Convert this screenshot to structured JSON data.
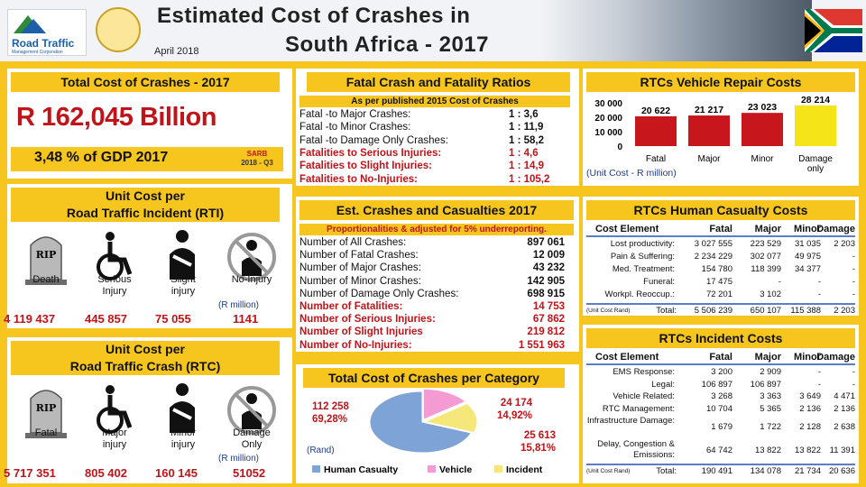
{
  "header": {
    "logo_text": "Road Traffic",
    "logo_sub": "Management Corporation",
    "title_line1": "Estimated Cost of Crashes in",
    "title_line2": "South Africa - 2017",
    "date": "April 2018"
  },
  "total_cost": {
    "heading": "Total Cost of Crashes - 2017",
    "amount": "R 162,045 Billion",
    "gdp": "3,48 % of GDP 2017",
    "source1": "SARB",
    "source2": "2018 - Q3"
  },
  "fatal_ratios": {
    "heading": "Fatal Crash and Fatality Ratios",
    "subheading": "As per published 2015 Cost of Crashes",
    "rows": [
      {
        "label": "Fatal  -to Major Crashes:",
        "value": "1 : 3,6",
        "red": false
      },
      {
        "label": "Fatal  -to Minor Crashes:",
        "value": "1 : 11,9",
        "red": false
      },
      {
        "label": "Fatal  -to Damage Only Crashes:",
        "value": "1 : 58,2",
        "red": false
      },
      {
        "label": "Fatalities to Serious Injuries:",
        "value": "1 : 4,6",
        "red": true
      },
      {
        "label": "Fatalities to Slight Injuries:",
        "value": "1 : 14,9",
        "red": true
      },
      {
        "label": "Fatalities to No-Injuries:",
        "value": "1 : 105,2",
        "red": true
      }
    ]
  },
  "vehicle_repair": {
    "heading": "RTCs Vehicle Repair Costs",
    "unit_note": "(Unit Cost -  R million)",
    "chart_data": {
      "type": "bar",
      "categories": [
        "Fatal",
        "Major",
        "Minor",
        "Damage only"
      ],
      "values": [
        20622,
        21217,
        23023,
        28214
      ],
      "value_labels": [
        "20 622",
        "21 217",
        "23 023",
        "28 214"
      ],
      "colors": [
        "#c8161d",
        "#c8161d",
        "#c8161d",
        "#f4e418"
      ],
      "ylim": [
        0,
        30000
      ],
      "yticks": [
        0,
        10000,
        20000,
        30000
      ],
      "ytick_labels": [
        "0",
        "10 000",
        "20 000",
        "30 000"
      ]
    }
  },
  "unit_cost_rti": {
    "heading_line1": "Unit Cost per",
    "heading_line2": "Road Traffic Incident (RTI)",
    "icons": [
      "tombstone-icon",
      "wheelchair-icon",
      "injured-person-icon",
      "no-injury-icon"
    ],
    "rip": "RIP",
    "labels": [
      "Death",
      "Serious Injury",
      "Slight injury",
      "No-Injury"
    ],
    "unit": "(R million)",
    "values": [
      "4 119 437",
      "445 857",
      "75 055",
      "1141"
    ]
  },
  "unit_cost_rtc": {
    "heading_line1": "Unit Cost per",
    "heading_line2": "Road Traffic Crash (RTC)",
    "rip": "RIP",
    "labels": [
      "Fatal",
      "Major injury",
      "Minor injury",
      "Damage Only"
    ],
    "unit": "(R million)",
    "values": [
      "5 717 351",
      "805 402",
      "160 145",
      "51052"
    ]
  },
  "est_crashes": {
    "heading": "Est. Crashes and Casualties 2017",
    "subheading": "Proportionalities & adjusted for 5% underreporting.",
    "rows": [
      {
        "label": "Number of All Crashes:",
        "value": "897 061",
        "red": false
      },
      {
        "label": "Number of Fatal Crashes:",
        "value": "12 009",
        "red": false
      },
      {
        "label": "Number of Major Crashes:",
        "value": "43 232",
        "red": false
      },
      {
        "label": "Number of Minor Crashes:",
        "value": "142 905",
        "red": false
      },
      {
        "label": "Number of Damage Only Crashes:",
        "value": "698 915",
        "red": false
      },
      {
        "label": "Number of Fatalities:",
        "value": "14 753",
        "red": true
      },
      {
        "label": "Number of Serious Injuries:",
        "value": "67 862",
        "red": true
      },
      {
        "label": "Number of Slight Injuries",
        "value": "219 812",
        "red": true
      },
      {
        "label": "Number of No-Injuries:",
        "value": "1 551 963",
        "red": true
      }
    ]
  },
  "cost_per_category": {
    "heading": "Total Cost of Crashes per Category",
    "unit": "(Rand)",
    "chart_data": {
      "type": "pie",
      "categories": [
        "Human Casualty",
        "Vehicle",
        "Incident"
      ],
      "values": [
        69.28,
        14.92,
        15.81
      ],
      "amount_labels": [
        "112 258",
        "24 174",
        "25 613"
      ],
      "pct_labels": [
        "69,28%",
        "14,92%",
        "15,81%"
      ],
      "colors": [
        "#7ea3d6",
        "#f49bd4",
        "#f5e77a"
      ]
    }
  },
  "human_casualty": {
    "heading": "RTCs Human Casualty Costs",
    "columns": [
      "Cost Element",
      "Fatal",
      "Major",
      "Minor",
      "Damage"
    ],
    "rows": [
      [
        "Lost productivity:",
        "3 027 555",
        "223 529",
        "31 035",
        "2 203"
      ],
      [
        "Pain & Suffering:",
        "2 234 229",
        "302 077",
        "49 975",
        "-"
      ],
      [
        "Med. Treatment:",
        "154 780",
        "118 399",
        "34 377",
        "-"
      ],
      [
        "Funeral:",
        "17 475",
        "-",
        "-",
        "-"
      ],
      [
        "Workpl. Reoccup.:",
        "72 201",
        "3 102",
        "-",
        "-"
      ]
    ],
    "total_note": "(Unit Cost Rand)",
    "total_label": "Total:",
    "total": [
      "5 506 239",
      "650 107",
      "115 388",
      "2 203"
    ]
  },
  "incident_costs": {
    "heading": "RTCs Incident Costs",
    "columns": [
      "Cost Element",
      "Fatal",
      "Major",
      "Minor",
      "Damage"
    ],
    "rows": [
      [
        "EMS Response:",
        "3 200",
        "2 909",
        "-",
        "-"
      ],
      [
        "Legal:",
        "106 897",
        "106 897",
        "-",
        "-"
      ],
      [
        "Vehicle Related:",
        "3 268",
        "3 363",
        "3 649",
        "4 471"
      ],
      [
        "RTC Management:",
        "10 704",
        "5 365",
        "2 136",
        "2 136"
      ],
      [
        "Infrastructure Damage:",
        "1 679",
        "1 722",
        "2 128",
        "2 638"
      ],
      [
        "Delay, Congestion & Emissions:",
        "64 742",
        "13 822",
        "13 822",
        "11 391"
      ]
    ],
    "total_note": "(Unit Cost Rand)",
    "total_label": "Total:",
    "total": [
      "190 491",
      "134 078",
      "21 734",
      "20 636"
    ]
  }
}
